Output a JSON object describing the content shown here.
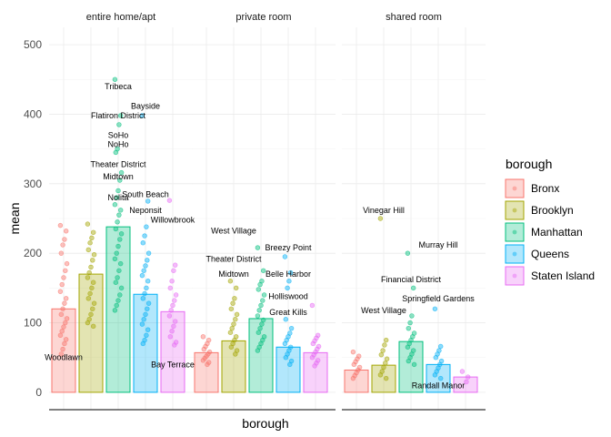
{
  "chart_data": {
    "type": "bar",
    "xlabel": "borough",
    "ylabel": "mean",
    "ylim": [
      -25,
      525
    ],
    "yticks": [
      0,
      100,
      200,
      300,
      400,
      500
    ],
    "grid": true,
    "legend": {
      "title": "borough",
      "placement": "right",
      "entries": [
        "Bronx",
        "Brooklyn",
        "Manhattan",
        "Queens",
        "Staten Island"
      ]
    },
    "colors": [
      "#F8766D",
      "#A3A500",
      "#00BF7D",
      "#00B0F6",
      "#E76BF3"
    ],
    "categories": [
      "Bronx",
      "Brooklyn",
      "Manhattan",
      "Queens",
      "Staten Island"
    ],
    "facets": [
      {
        "label": "entire home/apt",
        "values": [
          120,
          170,
          238,
          141,
          116
        ],
        "points": [
          [
            240,
            232,
            220,
            212,
            200,
            185,
            175,
            165,
            155,
            145,
            135,
            128,
            120,
            112,
            106,
            100,
            94,
            88,
            82,
            76,
            70,
            62,
            55
          ],
          [
            242,
            230,
            222,
            215,
            205,
            198,
            190,
            180,
            172,
            165,
            158,
            150,
            142,
            135,
            128,
            120,
            112,
            105,
            100,
            95
          ],
          [
            450,
            398,
            385,
            350,
            345,
            316,
            305,
            290,
            280,
            270,
            262,
            255,
            245,
            235,
            228,
            220,
            210,
            200,
            192,
            185,
            175,
            165,
            158,
            150,
            140,
            132,
            125,
            118
          ],
          [
            398,
            275,
            238,
            225,
            215,
            200,
            190,
            182,
            175,
            168,
            160,
            150,
            142,
            135,
            128,
            120,
            112,
            105,
            98,
            90,
            82,
            75,
            70
          ],
          [
            276,
            183,
            175,
            160,
            150,
            140,
            132,
            125,
            118,
            110,
            102,
            95,
            88,
            80,
            72,
            68
          ]
        ],
        "annotations": [
          {
            "text": "Tribeca",
            "category": "Manhattan",
            "value": 440
          },
          {
            "text": "Bayside",
            "category": "Queens",
            "value": 412
          },
          {
            "text": "Flatiron District",
            "category": "Manhattan",
            "value": 398
          },
          {
            "text": "SoHo",
            "category": "Manhattan",
            "value": 370
          },
          {
            "text": "NoHo",
            "category": "Manhattan",
            "value": 357
          },
          {
            "text": "Theater District",
            "category": "Manhattan",
            "value": 328
          },
          {
            "text": "Midtown",
            "category": "Manhattan",
            "value": 310
          },
          {
            "text": "South Beach",
            "category": "Queens",
            "value": 285
          },
          {
            "text": "Nolita",
            "category": "Manhattan",
            "value": 280
          },
          {
            "text": "Neponsit",
            "category": "Queens",
            "value": 262
          },
          {
            "text": "Willowbrook",
            "category": "Staten Island",
            "value": 248
          },
          {
            "text": "Woodlawn",
            "category": "Bronx",
            "value": 50
          },
          {
            "text": "Bay Terrace",
            "category": "Staten Island",
            "value": 40
          }
        ]
      },
      {
        "label": "private room",
        "values": [
          57,
          74,
          106,
          65,
          57
        ],
        "points": [
          [
            80,
            75,
            70,
            66,
            62,
            58,
            55,
            52,
            49,
            46,
            43,
            40
          ],
          [
            160,
            150,
            135,
            128,
            120,
            112,
            105,
            98,
            92,
            86,
            80,
            75,
            70,
            65,
            60,
            55
          ],
          [
            208,
            175,
            160,
            155,
            148,
            140,
            132,
            125,
            118,
            110,
            104,
            98,
            92,
            86,
            80,
            75,
            70,
            65,
            60
          ],
          [
            195,
            172,
            160,
            150,
            105,
            92,
            85,
            80,
            75,
            70,
            65,
            60,
            55,
            50,
            45,
            40
          ],
          [
            125,
            82,
            78,
            74,
            70,
            66,
            62,
            58,
            54,
            50,
            46,
            42,
            38
          ]
        ],
        "annotations": [
          {
            "text": "West Village",
            "category": "Brooklyn",
            "value": 232
          },
          {
            "text": "Breezy Point",
            "category": "Queens",
            "value": 208
          },
          {
            "text": "Theater District",
            "category": "Brooklyn",
            "value": 192
          },
          {
            "text": "Midtown",
            "category": "Brooklyn",
            "value": 170
          },
          {
            "text": "Belle Harbor",
            "category": "Queens",
            "value": 170
          },
          {
            "text": "Holliswood",
            "category": "Queens",
            "value": 138
          },
          {
            "text": "Great Kills",
            "category": "Queens",
            "value": 115
          }
        ]
      },
      {
        "label": "shared room",
        "values": [
          32,
          39,
          73,
          40,
          22
        ],
        "points": [
          [
            58,
            52,
            48,
            44,
            40,
            36,
            32,
            28,
            24,
            20
          ],
          [
            250,
            75,
            68,
            60,
            54,
            48,
            42,
            36,
            30,
            25,
            20
          ],
          [
            200,
            150,
            110,
            100,
            92,
            85,
            80,
            75,
            70,
            65,
            60,
            55,
            50,
            45,
            40
          ],
          [
            120,
            66,
            60,
            55,
            50,
            45,
            40,
            35,
            30,
            25,
            20
          ],
          [
            30,
            22,
            15
          ]
        ],
        "annotations": [
          {
            "text": "Vinegar Hill",
            "category": "Brooklyn",
            "value": 262
          },
          {
            "text": "Murray Hill",
            "category": "Queens",
            "value": 212
          },
          {
            "text": "Financial District",
            "category": "Manhattan",
            "value": 162
          },
          {
            "text": "Springfield Gardens",
            "category": "Queens",
            "value": 135
          },
          {
            "text": "West Village",
            "category": "Brooklyn",
            "value": 118
          },
          {
            "text": "Randall Manor",
            "category": "Queens",
            "value": 10
          }
        ]
      }
    ]
  }
}
